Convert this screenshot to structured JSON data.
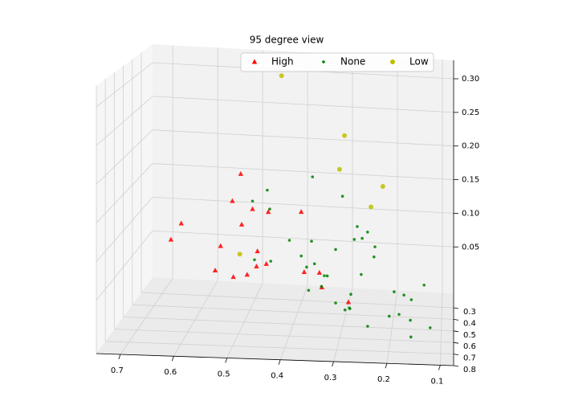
{
  "chart_data": {
    "type": "scatter3d",
    "title": "95 degree view",
    "xlim": [
      0.075,
      0.745
    ],
    "ylim": [
      0.175,
      0.8
    ],
    "zlim": [
      -0.019,
      0.3275
    ],
    "xticks": [
      0.1,
      0.2,
      0.3,
      0.4,
      0.5,
      0.6,
      0.7
    ],
    "yticks": [
      0.3,
      0.4,
      0.5,
      0.6,
      0.7,
      0.8
    ],
    "zticks": [
      0.05,
      {
        "value": 0.1,
        "label": "0.10"
      },
      0.15,
      {
        "value": 0.2,
        "label": "0.20"
      },
      0.25,
      {
        "value": 0.3,
        "label": "0.30"
      }
    ],
    "grid": true,
    "legend": "upper right",
    "series": [
      {
        "name": "High",
        "color": "#ff0000",
        "marker": "triangle",
        "x": [
          0.508,
          0.525,
          0.484,
          0.452,
          0.385,
          0.629,
          0.506,
          0.65,
          0.549,
          0.474,
          0.476,
          0.456,
          0.495,
          0.523,
          0.56,
          0.379,
          0.348,
          0.343,
          0.289
        ],
        "y": [
          0.49,
          0.49,
          0.49,
          0.49,
          0.49,
          0.49,
          0.49,
          0.49,
          0.49,
          0.49,
          0.49,
          0.49,
          0.49,
          0.49,
          0.49,
          0.49,
          0.49,
          0.49,
          0.49
        ],
        "z": [
          0.184,
          0.146,
          0.136,
          0.133,
          0.135,
          0.112,
          0.114,
          0.089,
          0.083,
          0.078,
          0.057,
          0.061,
          0.045,
          0.041,
          0.049,
          0.052,
          0.052,
          0.032,
          0.013
        ]
      },
      {
        "name": "None",
        "color": "#008000",
        "marker": "dot",
        "x": [
          0.362,
          0.454,
          0.484,
          0.449,
          0.301,
          0.271,
          0.25,
          0.261,
          0.277,
          0.235,
          0.237,
          0.315,
          0.364,
          0.409,
          0.385,
          0.48,
          0.447,
          0.374,
          0.358,
          0.338,
          0.332,
          0.263,
          0.37,
          0.344,
          0.284,
          0.135,
          0.196,
          0.176,
          0.161,
          0.287,
          0.315,
          0.296,
          0.286,
          0.206,
          0.186,
          0.158,
          0.24,
          0.12,
          0.157
        ],
        "y": [
          0.49,
          0.49,
          0.49,
          0.49,
          0.49,
          0.49,
          0.49,
          0.49,
          0.49,
          0.49,
          0.49,
          0.49,
          0.49,
          0.49,
          0.49,
          0.49,
          0.49,
          0.49,
          0.49,
          0.49,
          0.49,
          0.49,
          0.49,
          0.49,
          0.49,
          0.49,
          0.49,
          0.49,
          0.49,
          0.49,
          0.49,
          0.49,
          0.49,
          0.49,
          0.49,
          0.71,
          0.71,
          0.71,
          0.71
        ],
        "z": [
          0.184,
          0.163,
          0.147,
          0.137,
          0.159,
          0.118,
          0.111,
          0.102,
          0.1,
          0.091,
          0.077,
          0.085,
          0.095,
          0.095,
          0.074,
          0.066,
          0.065,
          0.059,
          0.064,
          0.048,
          0.048,
          0.052,
          0.027,
          0.033,
          0.024,
          0.041,
          0.03,
          0.026,
          0.02,
          0.005,
          0.011,
          0.002,
          0.004,
          -0.004,
          -0.001,
          0.025,
          0.015,
          0.016,
          0.003
        ]
      },
      {
        "name": "Low",
        "color": "#bfbf00",
        "marker": "circle",
        "x": [
          0.425,
          0.297,
          0.307,
          0.219,
          0.243,
          0.51
        ],
        "y": [
          0.49,
          0.49,
          0.49,
          0.49,
          0.49,
          0.49
        ],
        "z": [
          0.322,
          0.243,
          0.196,
          0.175,
          0.146,
          0.073
        ]
      }
    ]
  }
}
